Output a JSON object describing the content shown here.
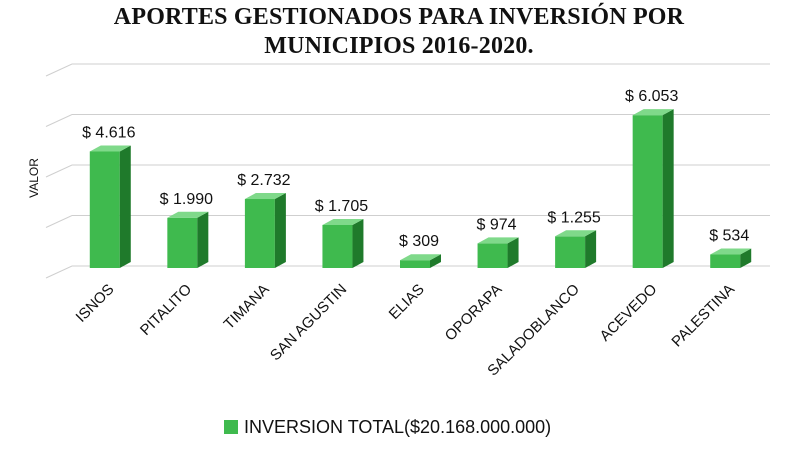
{
  "chart_data": {
    "type": "bar",
    "title_lines": [
      "APORTES GESTIONADOS PARA INVERSIÓN POR",
      "MUNICIPIOS 2016-2020."
    ],
    "ylabel": "VALOR",
    "xlabel": "",
    "categories": [
      "ISNOS",
      "PITALITO",
      "TIMANA",
      "SAN AGUSTIN",
      "ELIAS",
      "OPORAPA",
      "SALADOBLANCO",
      "ACEVEDO",
      "PALESTINA"
    ],
    "series": [
      {
        "name": "INVERSION TOTAL($20.168.000.000)",
        "values": [
          4616,
          1990,
          2732,
          1705,
          309,
          974,
          1255,
          6053,
          534
        ],
        "labels": [
          "$ 4.616",
          "$ 1.990",
          "$ 2.732",
          "$ 1.705",
          "$ 309",
          "$ 974",
          "$ 1.255",
          "$ 6.053",
          "$ 534"
        ]
      }
    ],
    "ylim": [
      0,
      8000
    ],
    "grid": true,
    "legend_position": "bottom",
    "bar_colors": {
      "front": "#3fba4e",
      "side": "#1f7a2b",
      "top": "#7fd98a"
    }
  }
}
